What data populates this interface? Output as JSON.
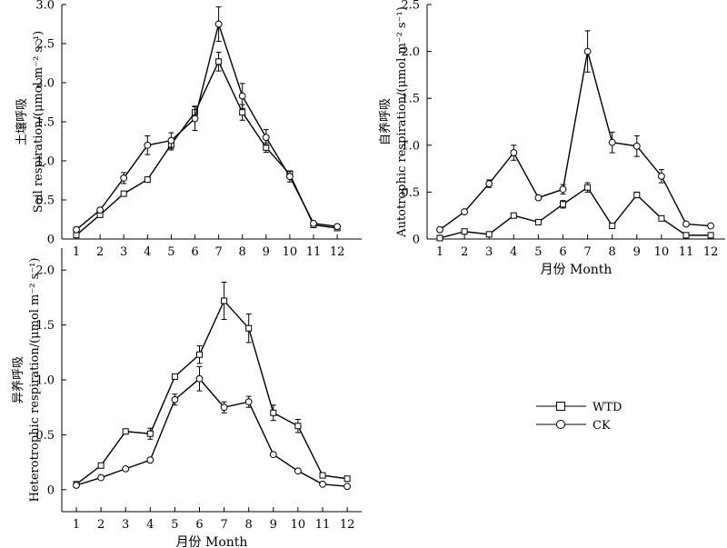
{
  "months": [
    1,
    2,
    3,
    4,
    5,
    6,
    7,
    8,
    9,
    10,
    11,
    12
  ],
  "legend": {
    "items": [
      "WTD",
      "CK"
    ]
  },
  "chart_data": [
    {
      "type": "line",
      "id": "soil",
      "ylabel_cn": "土壤呼吸",
      "ylabel": "Soil respiration/(μmol m⁻² s⁻¹)",
      "xlabel": "",
      "ylim": [
        0,
        3.0
      ],
      "yticks": [
        "0",
        "0.5",
        "1.0",
        "1.5",
        "2.0",
        "2.5",
        "3.0"
      ],
      "x": [
        1,
        2,
        3,
        4,
        5,
        6,
        7,
        8,
        9,
        10,
        11,
        12
      ],
      "series": [
        {
          "name": "WTD",
          "marker": "square",
          "values": [
            0.05,
            0.31,
            0.58,
            0.76,
            1.21,
            1.62,
            2.27,
            1.62,
            1.17,
            0.83,
            0.18,
            0.14
          ],
          "errors": [
            0.05,
            0.02,
            0.02,
            0.03,
            0.07,
            0.08,
            0.12,
            0.1,
            0.06,
            0.04,
            0.02,
            0.02
          ]
        },
        {
          "name": "CK",
          "marker": "circle",
          "values": [
            0.12,
            0.37,
            0.78,
            1.2,
            1.26,
            1.54,
            2.75,
            1.83,
            1.3,
            0.8,
            0.2,
            0.16
          ],
          "errors": [
            0.03,
            0.02,
            0.07,
            0.12,
            0.1,
            0.15,
            0.22,
            0.16,
            0.1,
            0.07,
            0.02,
            0.02
          ]
        }
      ]
    },
    {
      "type": "line",
      "id": "auto",
      "ylabel_cn": "自养呼吸",
      "ylabel": "Autotrophic respiration/(μmol m⁻² s⁻¹)",
      "xlabel": "月份 Month",
      "ylim": [
        0,
        2.5
      ],
      "yticks": [
        "0",
        "0.5",
        "1.0",
        "1.5",
        "2.0",
        "2.5"
      ],
      "x": [
        1,
        2,
        3,
        4,
        5,
        6,
        7,
        8,
        9,
        10,
        11,
        12
      ],
      "series": [
        {
          "name": "WTD",
          "marker": "square",
          "values": [
            0.01,
            0.08,
            0.05,
            0.25,
            0.18,
            0.37,
            0.55,
            0.14,
            0.47,
            0.22,
            0.04,
            0.04
          ],
          "errors": [
            0.01,
            0.01,
            0.01,
            0.02,
            0.02,
            0.04,
            0.05,
            0.01,
            0.03,
            0.02,
            0.01,
            0.01
          ]
        },
        {
          "name": "CK",
          "marker": "circle",
          "values": [
            0.1,
            0.29,
            0.59,
            0.92,
            0.44,
            0.53,
            2.0,
            1.03,
            0.99,
            0.67,
            0.16,
            0.14
          ],
          "errors": [
            0.02,
            0.02,
            0.04,
            0.08,
            0.02,
            0.05,
            0.22,
            0.11,
            0.11,
            0.07,
            0.01,
            0.01
          ]
        }
      ]
    },
    {
      "type": "line",
      "id": "hetero",
      "ylabel_cn": "异养呼吸",
      "ylabel": "Heterotrophic respiration/(μmol m⁻² s⁻¹)",
      "xlabel": "月份 Month",
      "ylim": [
        -0.2,
        2.2
      ],
      "yticks": [
        "0",
        "0.5",
        "1.0",
        "1.5",
        "2.0"
      ],
      "x": [
        1,
        2,
        3,
        4,
        5,
        6,
        7,
        8,
        9,
        10,
        11,
        12
      ],
      "series": [
        {
          "name": "WTD",
          "marker": "square",
          "values": [
            0.05,
            0.22,
            0.53,
            0.51,
            1.03,
            1.23,
            1.72,
            1.47,
            0.7,
            0.58,
            0.13,
            0.1
          ],
          "errors": [
            0.01,
            0.01,
            0.02,
            0.05,
            0.02,
            0.08,
            0.17,
            0.13,
            0.07,
            0.06,
            0.01,
            0.01
          ]
        },
        {
          "name": "CK",
          "marker": "circle",
          "values": [
            0.04,
            0.11,
            0.19,
            0.27,
            0.82,
            1.01,
            0.75,
            0.8,
            0.32,
            0.17,
            0.05,
            0.03
          ],
          "errors": [
            0.01,
            0.01,
            0.01,
            0.02,
            0.05,
            0.11,
            0.05,
            0.05,
            0.01,
            0.01,
            0.01,
            0.01
          ]
        }
      ]
    }
  ]
}
